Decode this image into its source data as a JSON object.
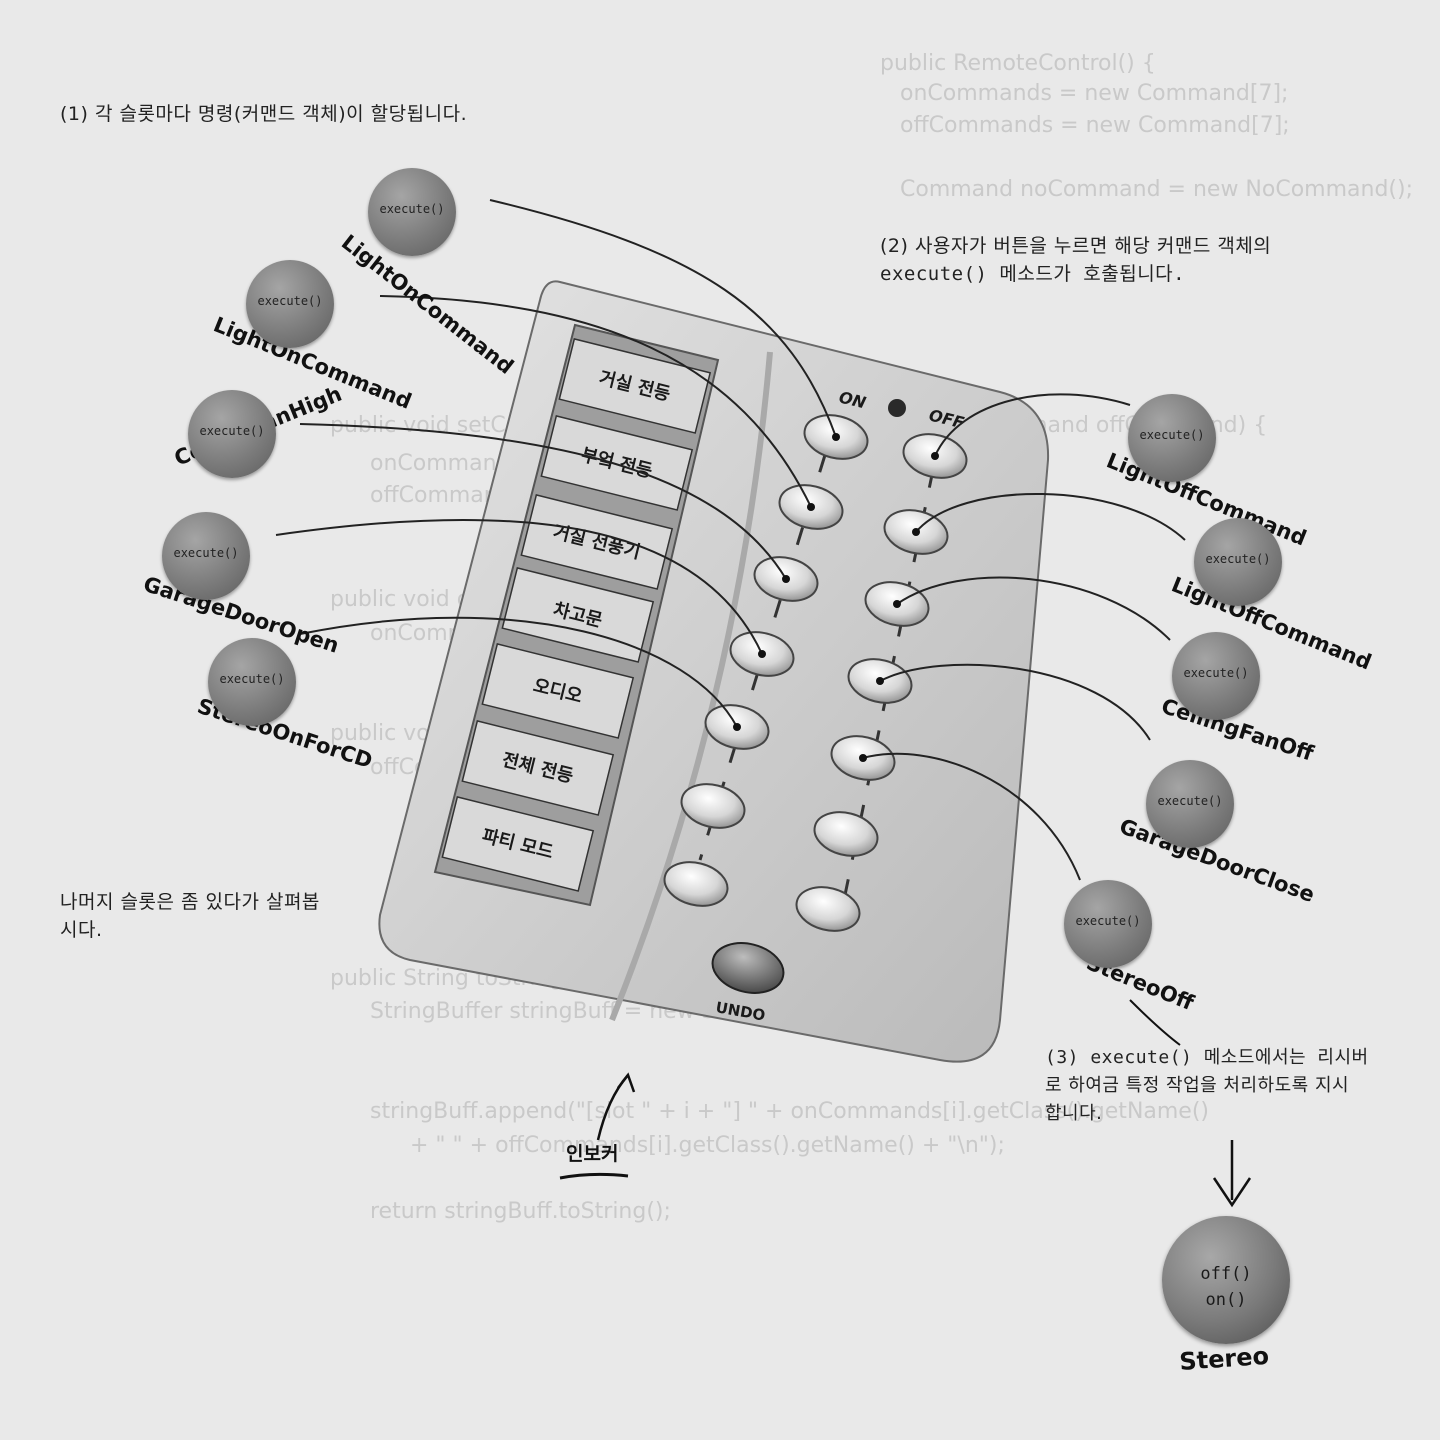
{
  "annotations": {
    "slot_note": "(1) 각 슬롯마다 명령(커맨드 객체)이 할당됩니다.",
    "press_note_line1": "(2) 사용자가 버튼을 누르면 해당 커맨드 객체의",
    "press_note_line2": "execute() 메소드가 호출됩니다.",
    "remaining_note_line1": "나머지 슬롯은 좀 있다가 살펴봅",
    "remaining_note_line2": "시다.",
    "receiver_note_line1": "(3) execute() 메소드에서는 리시버",
    "receiver_note_line2": "로 하여금 특정 작업을 처리하도록 지시",
    "receiver_note_line3": "합니다.",
    "invoker_label": "인보커"
  },
  "remote": {
    "on_label": "ON",
    "off_label": "OFF",
    "undo_label": "UNDO",
    "slots": [
      "거실 전등",
      "부엌 전등",
      "거실 선풍기",
      "차고문",
      "오디오",
      "전체 전등",
      "파티 모드"
    ]
  },
  "commands": {
    "method": "execute()",
    "on": [
      "LightOnCommand",
      "LightOnCommand",
      "CeilingFanHigh",
      "GarageDoorOpen",
      "StereoOnForCD"
    ],
    "off": [
      "LightOffCommand",
      "LightOffCommand",
      "CeilingFanOff",
      "GarageDoorClose",
      "StereoOff"
    ]
  },
  "receiver": {
    "name": "Stereo",
    "methods": [
      "off()",
      "on()"
    ]
  },
  "colors": {
    "remote_body": "#d2d2d2",
    "command_ball": "#7c7c7c",
    "ink": "#222222"
  }
}
